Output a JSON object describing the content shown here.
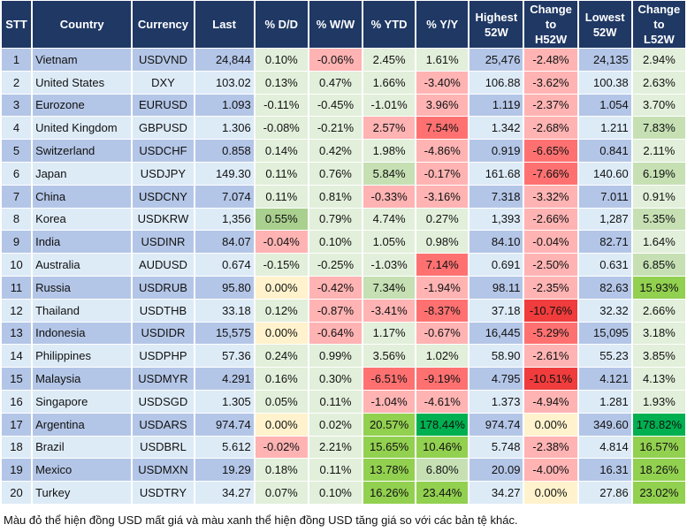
{
  "chart_data": {
    "type": "table",
    "columns": [
      "STT",
      "Country",
      "Currency",
      "Last",
      "% D/D",
      "% W/W",
      "% YTD",
      "% Y/Y",
      "Highest 52W",
      "Change to H52W",
      "Lowest 52W",
      "Change to L52W"
    ],
    "rows": [
      {
        "stt": "1",
        "country": "Vietnam",
        "currency": "USDVND",
        "last": "24,844",
        "dd": "0.10%",
        "ww": "-0.06%",
        "ytd": "2.45%",
        "yy": "1.61%",
        "high": "25,476",
        "ch": "-2.48%",
        "low": "24,135",
        "cl": "2.94%",
        "colors": [
          "n",
          "r1",
          "n",
          "n",
          "r1",
          "n"
        ]
      },
      {
        "stt": "2",
        "country": "United States",
        "currency": "DXY",
        "last": "103.02",
        "dd": "0.13%",
        "ww": "0.47%",
        "ytd": "1.66%",
        "yy": "-3.40%",
        "high": "106.88",
        "ch": "-3.62%",
        "low": "100.38",
        "cl": "2.63%",
        "colors": [
          "n",
          "n",
          "n",
          "r1",
          "r1",
          "n"
        ]
      },
      {
        "stt": "3",
        "country": "Eurozone",
        "currency": "EURUSD",
        "last": "1.093",
        "dd": "-0.11%",
        "ww": "-0.45%",
        "ytd": "-1.01%",
        "yy": "3.96%",
        "high": "1.119",
        "ch": "-2.37%",
        "low": "1.054",
        "cl": "3.70%",
        "colors": [
          "n",
          "n",
          "n",
          "r1",
          "r1",
          "n"
        ]
      },
      {
        "stt": "4",
        "country": "United Kingdom",
        "currency": "GBPUSD",
        "last": "1.306",
        "dd": "-0.08%",
        "ww": "-0.21%",
        "ytd": "2.57%",
        "yy": "7.54%",
        "high": "1.342",
        "ch": "-2.68%",
        "low": "1.211",
        "cl": "7.83%",
        "colors": [
          "n",
          "n",
          "r1",
          "r2",
          "r1",
          "g1"
        ]
      },
      {
        "stt": "5",
        "country": "Switzerland",
        "currency": "USDCHF",
        "last": "0.858",
        "dd": "0.14%",
        "ww": "0.42%",
        "ytd": "1.98%",
        "yy": "-4.86%",
        "high": "0.919",
        "ch": "-6.65%",
        "low": "0.841",
        "cl": "2.11%",
        "colors": [
          "n",
          "n",
          "n",
          "r1",
          "r2",
          "n"
        ]
      },
      {
        "stt": "6",
        "country": "Japan",
        "currency": "USDJPY",
        "last": "149.30",
        "dd": "0.11%",
        "ww": "0.76%",
        "ytd": "5.84%",
        "yy": "-0.17%",
        "high": "161.68",
        "ch": "-7.66%",
        "low": "140.60",
        "cl": "6.19%",
        "colors": [
          "n",
          "n",
          "g1",
          "r1",
          "r2",
          "g1"
        ]
      },
      {
        "stt": "7",
        "country": "China",
        "currency": "USDCNY",
        "last": "7.074",
        "dd": "0.11%",
        "ww": "0.81%",
        "ytd": "-0.33%",
        "yy": "-3.16%",
        "high": "7.318",
        "ch": "-3.32%",
        "low": "7.011",
        "cl": "0.91%",
        "colors": [
          "n",
          "n",
          "r1",
          "r1",
          "r1",
          "n"
        ]
      },
      {
        "stt": "8",
        "country": "Korea",
        "currency": "USDKRW",
        "last": "1,356",
        "dd": "0.55%",
        "ww": "0.79%",
        "ytd": "4.74%",
        "yy": "0.27%",
        "high": "1,393",
        "ch": "-2.66%",
        "low": "1,287",
        "cl": "5.35%",
        "colors": [
          "g2",
          "n",
          "n",
          "n",
          "r1",
          "g1"
        ]
      },
      {
        "stt": "9",
        "country": "India",
        "currency": "USDINR",
        "last": "84.07",
        "dd": "-0.04%",
        "ww": "0.10%",
        "ytd": "1.05%",
        "yy": "0.98%",
        "high": "84.10",
        "ch": "-0.04%",
        "low": "82.71",
        "cl": "1.64%",
        "colors": [
          "r1",
          "n",
          "n",
          "n",
          "r1",
          "n"
        ]
      },
      {
        "stt": "10",
        "country": "Australia",
        "currency": "AUDUSD",
        "last": "0.674",
        "dd": "-0.15%",
        "ww": "-0.25%",
        "ytd": "-1.03%",
        "yy": "7.14%",
        "high": "0.691",
        "ch": "-2.50%",
        "low": "0.631",
        "cl": "6.85%",
        "colors": [
          "n",
          "n",
          "n",
          "r2",
          "r1",
          "g1"
        ]
      },
      {
        "stt": "11",
        "country": "Russia",
        "currency": "USDRUB",
        "last": "95.80",
        "dd": "0.00%",
        "ww": "-0.42%",
        "ytd": "7.34%",
        "yy": "-1.94%",
        "high": "98.11",
        "ch": "-2.35%",
        "low": "82.63",
        "cl": "15.93%",
        "colors": [
          "y",
          "r1",
          "g1",
          "r1",
          "r1",
          "g3"
        ]
      },
      {
        "stt": "12",
        "country": "Thailand",
        "currency": "USDTHB",
        "last": "33.18",
        "dd": "0.12%",
        "ww": "-0.87%",
        "ytd": "-3.41%",
        "yy": "-8.37%",
        "high": "37.18",
        "ch": "-10.76%",
        "low": "32.32",
        "cl": "2.66%",
        "colors": [
          "n",
          "r1",
          "r1",
          "r2",
          "r3",
          "n"
        ]
      },
      {
        "stt": "13",
        "country": "Indonesia",
        "currency": "USDIDR",
        "last": "15,575",
        "dd": "0.00%",
        "ww": "-0.64%",
        "ytd": "1.17%",
        "yy": "-0.67%",
        "high": "16,445",
        "ch": "-5.29%",
        "low": "15,095",
        "cl": "3.18%",
        "colors": [
          "y",
          "r1",
          "n",
          "r1",
          "r2",
          "n"
        ]
      },
      {
        "stt": "14",
        "country": "Philippines",
        "currency": "USDPHP",
        "last": "57.36",
        "dd": "0.24%",
        "ww": "0.99%",
        "ytd": "3.56%",
        "yy": "1.02%",
        "high": "58.90",
        "ch": "-2.61%",
        "low": "55.23",
        "cl": "3.85%",
        "colors": [
          "n",
          "n",
          "n",
          "n",
          "r1",
          "n"
        ]
      },
      {
        "stt": "15",
        "country": "Malaysia",
        "currency": "USDMYR",
        "last": "4.291",
        "dd": "0.16%",
        "ww": "0.30%",
        "ytd": "-6.51%",
        "yy": "-9.19%",
        "high": "4.795",
        "ch": "-10.51%",
        "low": "4.121",
        "cl": "4.13%",
        "colors": [
          "n",
          "n",
          "r2",
          "r2",
          "r3",
          "n"
        ]
      },
      {
        "stt": "16",
        "country": "Singapore",
        "currency": "USDSGD",
        "last": "1.305",
        "dd": "0.05%",
        "ww": "0.11%",
        "ytd": "-1.04%",
        "yy": "-4.61%",
        "high": "1.373",
        "ch": "-4.94%",
        "low": "1.281",
        "cl": "1.93%",
        "colors": [
          "n",
          "n",
          "r1",
          "r1",
          "r1",
          "n"
        ]
      },
      {
        "stt": "17",
        "country": "Argentina",
        "currency": "USDARS",
        "last": "974.74",
        "dd": "0.00%",
        "ww": "0.02%",
        "ytd": "20.57%",
        "yy": "178.44%",
        "high": "974.74",
        "ch": "0.00%",
        "low": "349.60",
        "cl": "178.82%",
        "colors": [
          "y",
          "n",
          "g3",
          "g4",
          "y",
          "g4"
        ]
      },
      {
        "stt": "18",
        "country": "Brazil",
        "currency": "USDBRL",
        "last": "5.612",
        "dd": "-0.02%",
        "ww": "2.21%",
        "ytd": "15.65%",
        "yy": "10.46%",
        "high": "5.748",
        "ch": "-2.38%",
        "low": "4.814",
        "cl": "16.57%",
        "colors": [
          "r1",
          "n",
          "g3",
          "g3",
          "r1",
          "g3"
        ]
      },
      {
        "stt": "19",
        "country": "Mexico",
        "currency": "USDMXN",
        "last": "19.29",
        "dd": "0.18%",
        "ww": "0.11%",
        "ytd": "13.78%",
        "yy": "6.80%",
        "high": "20.09",
        "ch": "-4.00%",
        "low": "16.31",
        "cl": "18.26%",
        "colors": [
          "n",
          "n",
          "g3",
          "g1",
          "r1",
          "g3"
        ]
      },
      {
        "stt": "20",
        "country": "Turkey",
        "currency": "USDTRY",
        "last": "34.27",
        "dd": "0.07%",
        "ww": "0.10%",
        "ytd": "16.26%",
        "yy": "23.44%",
        "high": "34.27",
        "ch": "0.00%",
        "low": "27.86",
        "cl": "23.02%",
        "colors": [
          "n",
          "n",
          "g3",
          "g3",
          "y",
          "g3"
        ]
      }
    ],
    "color_scale": {
      "n": "#e2efda",
      "r1": "#ffb3b3",
      "r2": "#ff7171",
      "r3": "#f03c3c",
      "g1": "#c6e0b4",
      "g2": "#a9d08e",
      "g3": "#92d050",
      "g4": "#00b050",
      "y": "#fff2cc"
    }
  },
  "header": {
    "stt": "STT",
    "country": "Country",
    "currency": "Currency",
    "last": "Last",
    "dd": "% D/D",
    "ww": "% W/W",
    "ytd": "% YTD",
    "yy": "% Y/Y",
    "high": [
      "Highest",
      "52W"
    ],
    "ch": [
      "Change",
      "to",
      "H52W"
    ],
    "low": [
      "Lowest",
      "52W"
    ],
    "cl": [
      "Change",
      "to",
      "L52W"
    ]
  },
  "footnote": "Màu đỏ thể hiện đồng USD mất giá và màu xanh thể hiện đồng USD tăng giá so với các bản tệ khác."
}
